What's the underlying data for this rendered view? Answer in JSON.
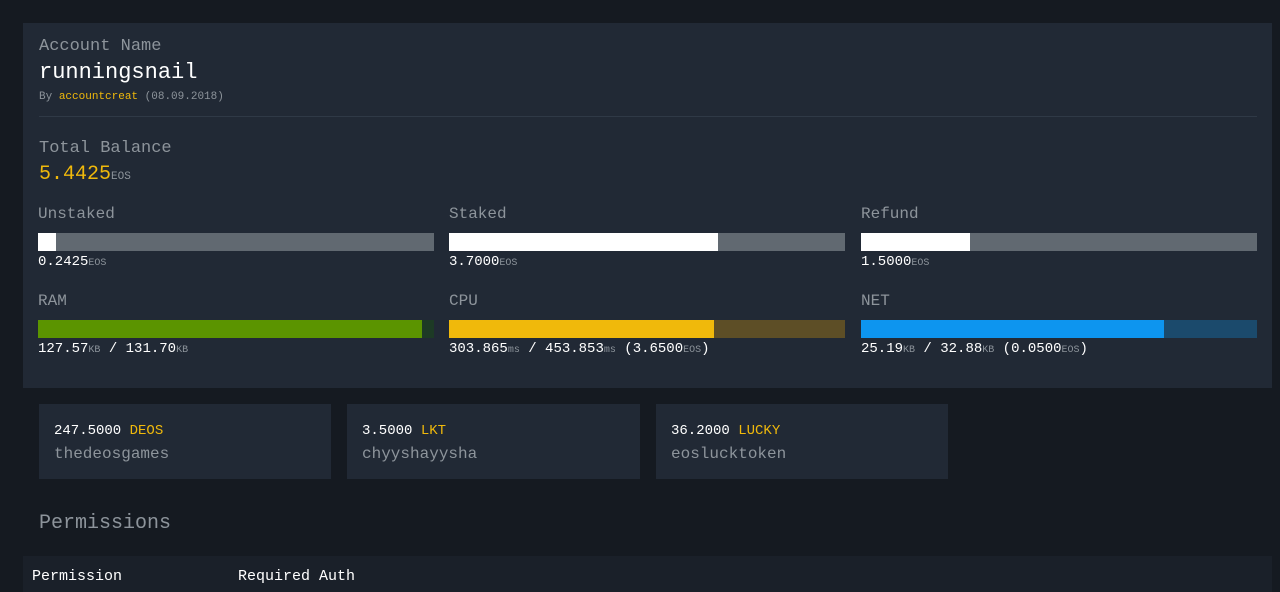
{
  "account": {
    "label": "Account Name",
    "name": "runningsnail",
    "by_prefix": "By",
    "creator": "accountcreat",
    "created_date": "(08.09.2018)"
  },
  "balance": {
    "label": "Total Balance",
    "value": "5.4425",
    "unit": "EOS"
  },
  "metrics": {
    "unstaked": {
      "label": "Unstaked",
      "value": "0.2425",
      "unit": "EOS",
      "fill_fraction": 0.0446
    },
    "staked": {
      "label": "Staked",
      "value": "3.7000",
      "unit": "EOS",
      "fill_fraction": 0.6798
    },
    "refund": {
      "label": "Refund",
      "value": "1.5000",
      "unit": "EOS",
      "fill_fraction": 0.2756
    },
    "ram": {
      "label": "RAM",
      "used": "127.57",
      "used_unit": "KB",
      "sep": " / ",
      "total": "131.70",
      "total_unit": "KB",
      "fill_fraction": 0.9686
    },
    "cpu": {
      "label": "CPU",
      "used": "303.865",
      "used_unit": "ms",
      "sep": " / ",
      "total": "453.853",
      "total_unit": "ms",
      "stake_open": " (",
      "stake": "3.6500",
      "stake_unit": "EOS",
      "stake_close": ")",
      "fill_fraction": 0.6695
    },
    "net": {
      "label": "NET",
      "used": "25.19",
      "used_unit": "KB",
      "sep": " / ",
      "total": "32.88",
      "total_unit": "KB",
      "stake_open": " (",
      "stake": "0.0500",
      "stake_unit": "EOS",
      "stake_close": ")",
      "fill_fraction": 0.7661
    }
  },
  "tokens": [
    {
      "amount": "247.5000",
      "symbol": "DEOS",
      "contract": "thedeosgames"
    },
    {
      "amount": "3.5000",
      "symbol": "LKT",
      "contract": "chyyshayysha"
    },
    {
      "amount": "36.2000",
      "symbol": "LUCKY",
      "contract": "eoslucktoken"
    }
  ],
  "permissions": {
    "title": "Permissions",
    "columns": [
      "Permission",
      "Required Auth"
    ]
  },
  "colors": {
    "background": "#151a21",
    "card": "#212935",
    "accent_gold": "#f0b90b",
    "ram_green": "#5b9400",
    "net_blue": "#0d95ef",
    "muted_text": "#8d949b"
  }
}
